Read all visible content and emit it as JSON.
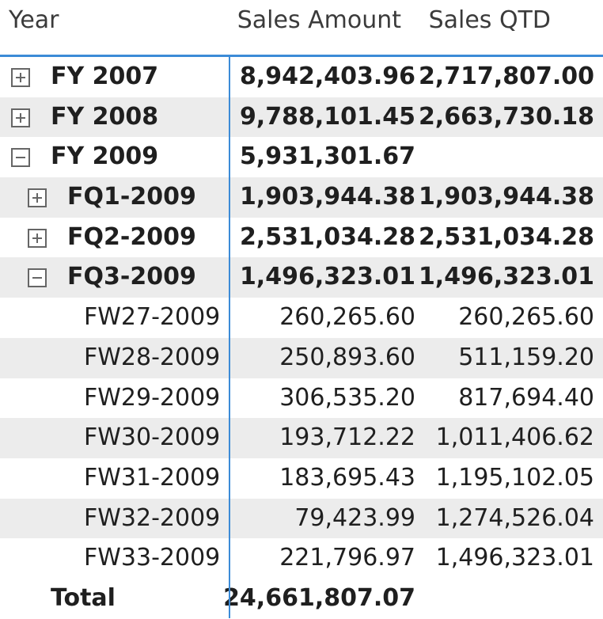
{
  "header": {
    "col_year": "Year",
    "col_sales_amount": "Sales Amount",
    "col_sales_qtd": "Sales QTD"
  },
  "rows": [
    {
      "label": "FY 2007",
      "amount": "8,942,403.96",
      "qtd": "2,717,807.00",
      "toggle": "expand"
    },
    {
      "label": "FY 2008",
      "amount": "9,788,101.45",
      "qtd": "2,663,730.18",
      "toggle": "expand"
    },
    {
      "label": "FY 2009",
      "amount": "5,931,301.67",
      "qtd": "",
      "toggle": "collapse"
    },
    {
      "label": "FQ1-2009",
      "amount": "1,903,944.38",
      "qtd": "1,903,944.38",
      "toggle": "expand"
    },
    {
      "label": "FQ2-2009",
      "amount": "2,531,034.28",
      "qtd": "2,531,034.28",
      "toggle": "expand"
    },
    {
      "label": "FQ3-2009",
      "amount": "1,496,323.01",
      "qtd": "1,496,323.01",
      "toggle": "collapse"
    },
    {
      "label": "FW27-2009",
      "amount": "260,265.60",
      "qtd": "260,265.60"
    },
    {
      "label": "FW28-2009",
      "amount": "250,893.60",
      "qtd": "511,159.20"
    },
    {
      "label": "FW29-2009",
      "amount": "306,535.20",
      "qtd": "817,694.40"
    },
    {
      "label": "FW30-2009",
      "amount": "193,712.22",
      "qtd": "1,011,406.62"
    },
    {
      "label": "FW31-2009",
      "amount": "183,695.43",
      "qtd": "1,195,102.05"
    },
    {
      "label": "FW32-2009",
      "amount": "79,423.99",
      "qtd": "1,274,526.04"
    },
    {
      "label": "FW33-2009",
      "amount": "221,796.97",
      "qtd": "1,496,323.01"
    }
  ],
  "total": {
    "label": "Total",
    "amount": "24,661,807.07",
    "qtd": ""
  },
  "colors": {
    "accent": "#3c8bd7",
    "row_shade": "#ececec"
  }
}
